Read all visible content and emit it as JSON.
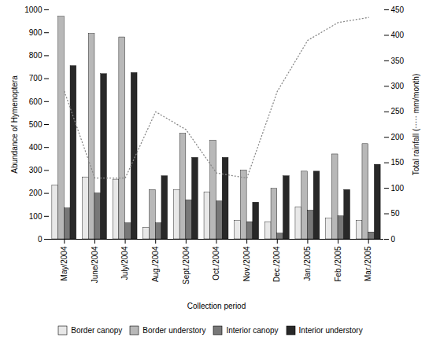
{
  "chart_data": {
    "type": "bar",
    "categories": [
      "May/2004",
      "June/2004",
      "July/2004",
      "Aug./2004",
      "Sept./2004",
      "Oct./2004",
      "Nov./2004",
      "Dec./2004",
      "Jan./2005",
      "Feb./2005",
      "Mar./2005"
    ],
    "series": [
      {
        "name": "Border canopy",
        "color": "#e8e8e8",
        "values": [
          235,
          270,
          260,
          50,
          215,
          205,
          80,
          75,
          140,
          90,
          80
        ]
      },
      {
        "name": "Border understory",
        "color": "#b8b8b8",
        "values": [
          970,
          895,
          880,
          215,
          460,
          430,
          300,
          220,
          295,
          370,
          415
        ]
      },
      {
        "name": "Interior canopy",
        "color": "#787878",
        "values": [
          135,
          200,
          70,
          70,
          170,
          165,
          75,
          25,
          125,
          100,
          30
        ]
      },
      {
        "name": "Interior understory",
        "color": "#282828",
        "values": [
          755,
          720,
          725,
          275,
          355,
          355,
          160,
          275,
          295,
          215,
          325
        ]
      },
      {
        "type": "line",
        "axis": "y2",
        "color": "#888888",
        "line_style": "dotted",
        "values": [
          290,
          120,
          120,
          250,
          215,
          130,
          120,
          290,
          390,
          425,
          435
        ]
      }
    ],
    "xlabel": "Collection period",
    "ylabel": "Abundance of Hymenoptera",
    "y2label": "Total rainfall (····· mm/month)",
    "ylim": [
      0,
      1000
    ],
    "yticks": [
      0,
      100,
      200,
      300,
      400,
      500,
      600,
      700,
      800,
      900,
      1000
    ],
    "y2lim": [
      0,
      450
    ],
    "y2ticks": [
      0,
      50,
      100,
      150,
      200,
      250,
      300,
      350,
      400,
      450
    ],
    "grid": false,
    "legend": "bottom"
  }
}
